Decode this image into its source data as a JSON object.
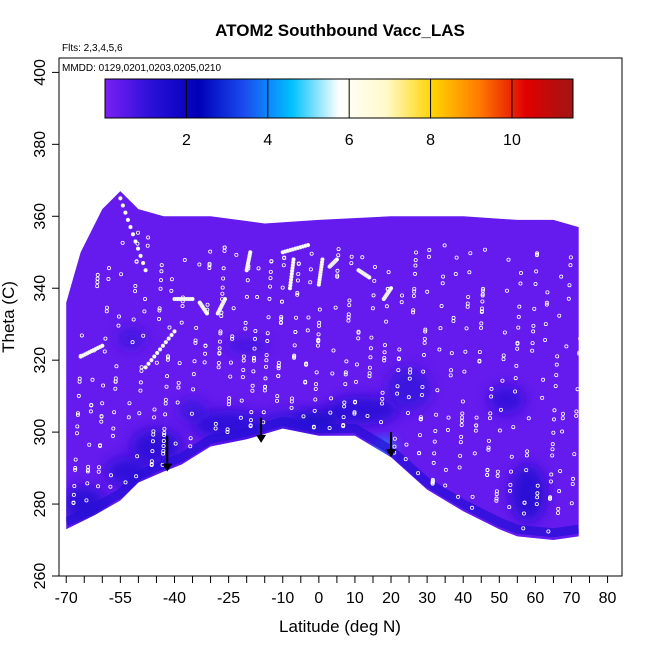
{
  "chart_data": {
    "type": "heatmap",
    "title": "ATOM2 Southbound Vacc_LAS",
    "notes": [
      "Flts: 2,3,4,5,6",
      "MMDD: 0129,0201,0203,0205,0210"
    ],
    "xlabel": "Latitude (deg N)",
    "ylabel": "Theta (C)",
    "xlim": [
      -72,
      84
    ],
    "ylim": [
      260,
      404
    ],
    "x_ticks": [
      -70,
      -55,
      -40,
      -25,
      -10,
      0,
      10,
      20,
      30,
      40,
      50,
      60,
      70,
      80
    ],
    "x_minor_ticks": [
      -65,
      -60,
      -50,
      -45,
      -35,
      -30,
      -20,
      -15,
      -5,
      5,
      15,
      25,
      35,
      45,
      55,
      65,
      75
    ],
    "y_ticks": [
      260,
      280,
      300,
      320,
      340,
      360,
      380,
      400
    ],
    "colorbar": {
      "min": 0,
      "max": 11.5,
      "ticks": [
        2,
        4,
        6,
        8,
        10
      ],
      "colors": [
        "#7a1ff5",
        "#2a10d8",
        "#0000b8",
        "#1a4ef0",
        "#00c2ff",
        "#ffffff",
        "#fffacc",
        "#ffd400",
        "#ff7a00",
        "#e00000",
        "#a01515"
      ]
    },
    "background_value": 0.3,
    "upper_boundary": [
      {
        "x": -70,
        "y": 336
      },
      {
        "x": -66,
        "y": 350
      },
      {
        "x": -60,
        "y": 362
      },
      {
        "x": -55,
        "y": 367
      },
      {
        "x": -50,
        "y": 362
      },
      {
        "x": -43,
        "y": 360
      },
      {
        "x": -30,
        "y": 360
      },
      {
        "x": -15,
        "y": 358
      },
      {
        "x": 0,
        "y": 359
      },
      {
        "x": 20,
        "y": 360
      },
      {
        "x": 40,
        "y": 360
      },
      {
        "x": 55,
        "y": 359
      },
      {
        "x": 65,
        "y": 359
      },
      {
        "x": 72,
        "y": 357
      }
    ],
    "right_boundary": [
      {
        "x": 72,
        "y": 357
      },
      {
        "x": 72,
        "y": 272
      }
    ],
    "lower_boundary": [
      {
        "x": -70,
        "y": 273
      },
      {
        "x": -62,
        "y": 277
      },
      {
        "x": -55,
        "y": 281
      },
      {
        "x": -50,
        "y": 286
      },
      {
        "x": -43,
        "y": 289
      },
      {
        "x": -38,
        "y": 291
      },
      {
        "x": -30,
        "y": 296
      },
      {
        "x": -20,
        "y": 298
      },
      {
        "x": -10,
        "y": 301
      },
      {
        "x": 0,
        "y": 299
      },
      {
        "x": 10,
        "y": 299
      },
      {
        "x": 20,
        "y": 293
      },
      {
        "x": 30,
        "y": 284
      },
      {
        "x": 40,
        "y": 278
      },
      {
        "x": 50,
        "y": 273
      },
      {
        "x": 55,
        "y": 271
      },
      {
        "x": 65,
        "y": 270
      },
      {
        "x": 72,
        "y": 271
      }
    ],
    "patches": [
      {
        "x": -25,
        "y": 302,
        "rx": 10,
        "ry": 4,
        "value": 1.2
      },
      {
        "x": -8,
        "y": 303,
        "rx": 8,
        "ry": 3,
        "value": 1.0
      },
      {
        "x": 12,
        "y": 306,
        "rx": 10,
        "ry": 4,
        "value": 1.3
      },
      {
        "x": 25,
        "y": 312,
        "rx": 6,
        "ry": 6,
        "value": 1.0
      },
      {
        "x": -45,
        "y": 296,
        "rx": 7,
        "ry": 5,
        "value": 1.3
      },
      {
        "x": -53,
        "y": 289,
        "rx": 6,
        "ry": 4,
        "value": 1.2
      },
      {
        "x": -65,
        "y": 280,
        "rx": 6,
        "ry": 5,
        "value": 1.4
      },
      {
        "x": 0,
        "y": 303,
        "rx": 6,
        "ry": 3,
        "value": 1.8
      },
      {
        "x": 58,
        "y": 283,
        "rx": 5,
        "ry": 8,
        "value": 1.4
      },
      {
        "x": 52,
        "y": 309,
        "rx": 5,
        "ry": 4,
        "value": 1.1
      },
      {
        "x": -20,
        "y": 324,
        "rx": 6,
        "ry": 2,
        "value": 0.9
      },
      {
        "x": -52,
        "y": 326,
        "rx": 4,
        "ry": 3,
        "value": 0.9
      },
      {
        "x": -35,
        "y": 306,
        "rx": 4,
        "ry": 3,
        "value": 1.0
      },
      {
        "x": 18,
        "y": 296,
        "rx": 3,
        "ry": 2,
        "value": 4.3
      }
    ],
    "arrows": [
      {
        "x": -42,
        "y_top": 299,
        "y_tip": 289
      },
      {
        "x": -16,
        "y_top": 304,
        "y_tip": 297
      },
      {
        "x": 20,
        "y_top": 300,
        "y_tip": 293
      }
    ],
    "flight_tracks": [
      {
        "points": [
          {
            "x": -66,
            "y": 321
          },
          {
            "x": -60,
            "y": 324
          }
        ]
      },
      {
        "points": [
          {
            "x": -48,
            "y": 318
          },
          {
            "x": -40,
            "y": 328
          }
        ]
      },
      {
        "points": [
          {
            "x": -55,
            "y": 365
          },
          {
            "x": -48,
            "y": 345
          }
        ]
      },
      {
        "points": [
          {
            "x": -40,
            "y": 337
          },
          {
            "x": -35,
            "y": 337
          }
        ]
      },
      {
        "points": [
          {
            "x": -10,
            "y": 350
          },
          {
            "x": -3,
            "y": 352
          }
        ]
      },
      {
        "points": [
          {
            "x": -20,
            "y": 345
          },
          {
            "x": -19,
            "y": 350
          }
        ]
      },
      {
        "points": [
          {
            "x": -8,
            "y": 340
          },
          {
            "x": -7,
            "y": 348
          }
        ]
      },
      {
        "points": [
          {
            "x": 0,
            "y": 341
          },
          {
            "x": 1,
            "y": 348
          }
        ]
      },
      {
        "points": [
          {
            "x": 3,
            "y": 346
          },
          {
            "x": 5,
            "y": 348
          }
        ]
      },
      {
        "points": [
          {
            "x": 11,
            "y": 345
          },
          {
            "x": 14,
            "y": 343
          }
        ]
      },
      {
        "points": [
          {
            "x": 18,
            "y": 337
          },
          {
            "x": 20,
            "y": 340
          }
        ]
      },
      {
        "points": [
          {
            "x": -28,
            "y": 333
          },
          {
            "x": -26,
            "y": 337
          }
        ]
      },
      {
        "points": [
          {
            "x": -33,
            "y": 336
          },
          {
            "x": -31,
            "y": 333
          }
        ]
      }
    ]
  }
}
